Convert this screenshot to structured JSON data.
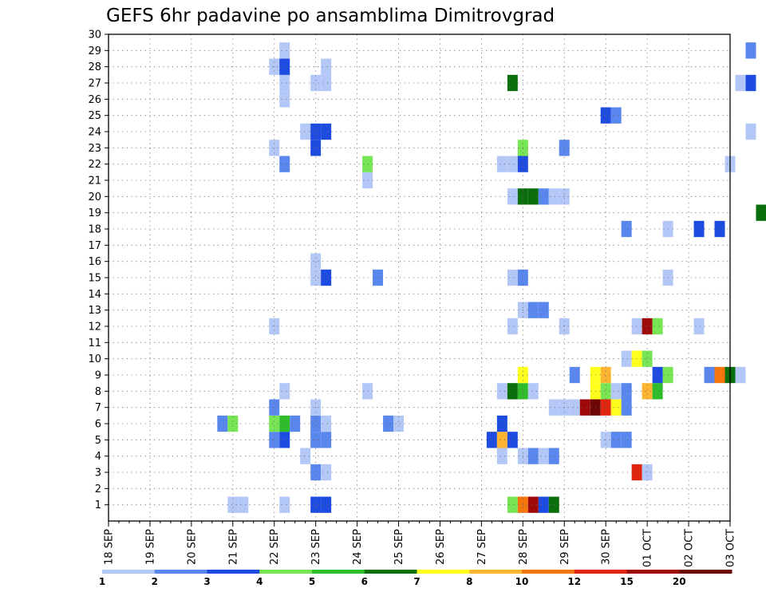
{
  "chart_data": {
    "type": "heatmap",
    "title": "GEFS 6hr padavine po ansamblima Dimitrovgrad",
    "xlabel": "",
    "ylabel": "",
    "x_tick_labels": [
      "18 SEP",
      "19 SEP",
      "20 SEP",
      "21 SEP",
      "22 SEP",
      "23 SEP",
      "24 SEP",
      "25 SEP",
      "26 SEP",
      "27 SEP",
      "28 SEP",
      "29 SEP",
      "30 SEP",
      "01 OCT",
      "02 OCT",
      "03 OCT"
    ],
    "y_range": [
      0,
      30
    ],
    "y_ticks": [
      1,
      2,
      3,
      4,
      5,
      6,
      7,
      8,
      9,
      10,
      11,
      12,
      13,
      14,
      15,
      16,
      17,
      18,
      19,
      20,
      21,
      22,
      23,
      24,
      25,
      26,
      27,
      28,
      29,
      30
    ],
    "grid": true,
    "colorbar": {
      "levels": [
        "1",
        "2",
        "3",
        "4",
        "5",
        "6",
        "7",
        "8",
        "10",
        "12",
        "15",
        "20"
      ],
      "colors": [
        "#b4c8f8",
        "#5a87ee",
        "#1e4ce0",
        "#78e654",
        "#2fbd2c",
        "#0a6e0c",
        "#ffff1e",
        "#fdb531",
        "#f6760d",
        "#e0260e",
        "#9e0a0a",
        "#6e0606"
      ]
    },
    "cells": [
      {
        "t": "21 SEP 00Z",
        "m": 1,
        "c": 0
      },
      {
        "t": "21 SEP 06Z",
        "m": 1,
        "c": 0
      },
      {
        "t": "22 SEP 06Z",
        "m": 1,
        "c": 0
      },
      {
        "t": "23 SEP 00Z",
        "m": 1,
        "c": 2
      },
      {
        "t": "23 SEP 06Z",
        "m": 1,
        "c": 2
      },
      {
        "t": "27 SEP 18Z",
        "m": 1,
        "c": 3
      },
      {
        "t": "28 SEP 00Z",
        "m": 1,
        "c": 8
      },
      {
        "t": "28 SEP 06Z",
        "m": 1,
        "c": 10
      },
      {
        "t": "28 SEP 12Z",
        "m": 1,
        "c": 2
      },
      {
        "t": "28 SEP 18Z",
        "m": 1,
        "c": 5
      },
      {
        "t": "23 SEP 00Z",
        "m": 3,
        "c": 1
      },
      {
        "t": "23 SEP 06Z",
        "m": 3,
        "c": 0
      },
      {
        "t": "30 SEP 18Z",
        "m": 3,
        "c": 9
      },
      {
        "t": "01 OCT 00Z",
        "m": 3,
        "c": 0
      },
      {
        "t": "22 SEP 18Z",
        "m": 4,
        "c": 0
      },
      {
        "t": "27 SEP 12Z",
        "m": 4,
        "c": 0
      },
      {
        "t": "28 SEP 00Z",
        "m": 4,
        "c": 0
      },
      {
        "t": "28 SEP 06Z",
        "m": 4,
        "c": 1
      },
      {
        "t": "28 SEP 12Z",
        "m": 4,
        "c": 0
      },
      {
        "t": "28 SEP 18Z",
        "m": 4,
        "c": 1
      },
      {
        "t": "22 SEP 00Z",
        "m": 5,
        "c": 1
      },
      {
        "t": "22 SEP 06Z",
        "m": 5,
        "c": 2
      },
      {
        "t": "23 SEP 00Z",
        "m": 5,
        "c": 1
      },
      {
        "t": "23 SEP 06Z",
        "m": 5,
        "c": 1
      },
      {
        "t": "27 SEP 06Z",
        "m": 5,
        "c": 2
      },
      {
        "t": "27 SEP 12Z",
        "m": 5,
        "c": 7
      },
      {
        "t": "27 SEP 18Z",
        "m": 5,
        "c": 2
      },
      {
        "t": "30 SEP 00Z",
        "m": 5,
        "c": 0
      },
      {
        "t": "30 SEP 06Z",
        "m": 5,
        "c": 1
      },
      {
        "t": "30 SEP 12Z",
        "m": 5,
        "c": 1
      },
      {
        "t": "20 SEP 18Z",
        "m": 6,
        "c": 1
      },
      {
        "t": "21 SEP 00Z",
        "m": 6,
        "c": 3
      },
      {
        "t": "22 SEP 00Z",
        "m": 6,
        "c": 3
      },
      {
        "t": "22 SEP 06Z",
        "m": 6,
        "c": 4
      },
      {
        "t": "22 SEP 12Z",
        "m": 6,
        "c": 1
      },
      {
        "t": "23 SEP 00Z",
        "m": 6,
        "c": 1
      },
      {
        "t": "23 SEP 06Z",
        "m": 6,
        "c": 0
      },
      {
        "t": "24 SEP 18Z",
        "m": 6,
        "c": 1
      },
      {
        "t": "25 SEP 00Z",
        "m": 6,
        "c": 0
      },
      {
        "t": "27 SEP 12Z",
        "m": 6,
        "c": 2
      },
      {
        "t": "22 SEP 00Z",
        "m": 7,
        "c": 1
      },
      {
        "t": "23 SEP 00Z",
        "m": 7,
        "c": 0
      },
      {
        "t": "28 SEP 18Z",
        "m": 7,
        "c": 0
      },
      {
        "t": "29 SEP 00Z",
        "m": 7,
        "c": 0
      },
      {
        "t": "29 SEP 06Z",
        "m": 7,
        "c": 0
      },
      {
        "t": "29 SEP 12Z",
        "m": 7,
        "c": 10
      },
      {
        "t": "29 SEP 18Z",
        "m": 7,
        "c": 11
      },
      {
        "t": "30 SEP 00Z",
        "m": 7,
        "c": 9
      },
      {
        "t": "30 SEP 06Z",
        "m": 7,
        "c": 6
      },
      {
        "t": "30 SEP 12Z",
        "m": 7,
        "c": 1
      },
      {
        "t": "22 SEP 06Z",
        "m": 8,
        "c": 0
      },
      {
        "t": "24 SEP 06Z",
        "m": 8,
        "c": 0
      },
      {
        "t": "27 SEP 12Z",
        "m": 8,
        "c": 0
      },
      {
        "t": "27 SEP 18Z",
        "m": 8,
        "c": 5
      },
      {
        "t": "28 SEP 00Z",
        "m": 8,
        "c": 4
      },
      {
        "t": "28 SEP 06Z",
        "m": 8,
        "c": 0
      },
      {
        "t": "29 SEP 18Z",
        "m": 8,
        "c": 6
      },
      {
        "t": "30 SEP 00Z",
        "m": 8,
        "c": 3
      },
      {
        "t": "30 SEP 06Z",
        "m": 8,
        "c": 0
      },
      {
        "t": "30 SEP 12Z",
        "m": 8,
        "c": 1
      },
      {
        "t": "01 OCT 00Z",
        "m": 8,
        "c": 7
      },
      {
        "t": "01 OCT 06Z",
        "m": 8,
        "c": 4
      },
      {
        "t": "28 SEP 00Z",
        "m": 9,
        "c": 6
      },
      {
        "t": "29 SEP 06Z",
        "m": 9,
        "c": 1
      },
      {
        "t": "29 SEP 18Z",
        "m": 9,
        "c": 6
      },
      {
        "t": "30 SEP 00Z",
        "m": 9,
        "c": 7
      },
      {
        "t": "01 OCT 06Z",
        "m": 9,
        "c": 2
      },
      {
        "t": "01 OCT 12Z",
        "m": 9,
        "c": 3
      },
      {
        "t": "02 OCT 12Z",
        "m": 9,
        "c": 1
      },
      {
        "t": "02 OCT 18Z",
        "m": 9,
        "c": 8
      },
      {
        "t": "03 OCT 00Z",
        "m": 9,
        "c": 5
      },
      {
        "t": "03 OCT 06Z",
        "m": 9,
        "c": 0
      },
      {
        "t": "30 SEP 12Z",
        "m": 10,
        "c": 0
      },
      {
        "t": "30 SEP 18Z",
        "m": 10,
        "c": 6
      },
      {
        "t": "01 OCT 00Z",
        "m": 10,
        "c": 3
      },
      {
        "t": "22 SEP 00Z",
        "m": 12,
        "c": 0
      },
      {
        "t": "27 SEP 18Z",
        "m": 12,
        "c": 0
      },
      {
        "t": "29 SEP 00Z",
        "m": 12,
        "c": 0
      },
      {
        "t": "30 SEP 18Z",
        "m": 12,
        "c": 0
      },
      {
        "t": "01 OCT 00Z",
        "m": 12,
        "c": 10
      },
      {
        "t": "01 OCT 06Z",
        "m": 12,
        "c": 3
      },
      {
        "t": "02 OCT 06Z",
        "m": 12,
        "c": 0
      },
      {
        "t": "28 SEP 00Z",
        "m": 13,
        "c": 0
      },
      {
        "t": "28 SEP 06Z",
        "m": 13,
        "c": 1
      },
      {
        "t": "28 SEP 12Z",
        "m": 13,
        "c": 1
      },
      {
        "t": "23 SEP 00Z",
        "m": 15,
        "c": 0
      },
      {
        "t": "23 SEP 06Z",
        "m": 15,
        "c": 2
      },
      {
        "t": "24 SEP 12Z",
        "m": 15,
        "c": 1
      },
      {
        "t": "27 SEP 18Z",
        "m": 15,
        "c": 0
      },
      {
        "t": "28 SEP 00Z",
        "m": 15,
        "c": 1
      },
      {
        "t": "01 OCT 12Z",
        "m": 15,
        "c": 0
      },
      {
        "t": "23 SEP 00Z",
        "m": 16,
        "c": 0
      },
      {
        "t": "30 SEP 12Z",
        "m": 18,
        "c": 1
      },
      {
        "t": "01 OCT 12Z",
        "m": 18,
        "c": 0
      },
      {
        "t": "02 OCT 06Z",
        "m": 18,
        "c": 2
      },
      {
        "t": "02 OCT 18Z",
        "m": 18,
        "c": 2
      },
      {
        "t": "03 OCT 18Z",
        "m": 19,
        "c": 5
      },
      {
        "t": "27 SEP 18Z",
        "m": 20,
        "c": 0
      },
      {
        "t": "28 SEP 00Z",
        "m": 20,
        "c": 5
      },
      {
        "t": "28 SEP 06Z",
        "m": 20,
        "c": 5
      },
      {
        "t": "28 SEP 12Z",
        "m": 20,
        "c": 1
      },
      {
        "t": "28 SEP 18Z",
        "m": 20,
        "c": 0
      },
      {
        "t": "29 SEP 00Z",
        "m": 20,
        "c": 0
      },
      {
        "t": "24 SEP 06Z",
        "m": 21,
        "c": 0
      },
      {
        "t": "22 SEP 06Z",
        "m": 22,
        "c": 1
      },
      {
        "t": "24 SEP 06Z",
        "m": 22,
        "c": 3
      },
      {
        "t": "27 SEP 12Z",
        "m": 22,
        "c": 0
      },
      {
        "t": "27 SEP 18Z",
        "m": 22,
        "c": 0
      },
      {
        "t": "28 SEP 00Z",
        "m": 22,
        "c": 2
      },
      {
        "t": "03 OCT 00Z",
        "m": 22,
        "c": 0
      },
      {
        "t": "22 SEP 00Z",
        "m": 23,
        "c": 0
      },
      {
        "t": "23 SEP 00Z",
        "m": 23,
        "c": 2
      },
      {
        "t": "28 SEP 00Z",
        "m": 23,
        "c": 3
      },
      {
        "t": "29 SEP 00Z",
        "m": 23,
        "c": 1
      },
      {
        "t": "22 SEP 18Z",
        "m": 24,
        "c": 0
      },
      {
        "t": "23 SEP 00Z",
        "m": 24,
        "c": 2
      },
      {
        "t": "23 SEP 06Z",
        "m": 24,
        "c": 2
      },
      {
        "t": "03 OCT 12Z",
        "m": 24,
        "c": 0
      },
      {
        "t": "30 SEP 00Z",
        "m": 25,
        "c": 2
      },
      {
        "t": "30 SEP 06Z",
        "m": 25,
        "c": 1
      },
      {
        "t": "22 SEP 06Z",
        "m": 26,
        "c": 0
      },
      {
        "t": "22 SEP 06Z",
        "m": 27,
        "c": 0
      },
      {
        "t": "23 SEP 00Z",
        "m": 27,
        "c": 0
      },
      {
        "t": "23 SEP 06Z",
        "m": 27,
        "c": 0
      },
      {
        "t": "27 SEP 18Z",
        "m": 27,
        "c": 5
      },
      {
        "t": "03 OCT 06Z",
        "m": 27,
        "c": 0
      },
      {
        "t": "03 OCT 12Z",
        "m": 27,
        "c": 2
      },
      {
        "t": "22 SEP 00Z",
        "m": 28,
        "c": 0
      },
      {
        "t": "22 SEP 06Z",
        "m": 28,
        "c": 2
      },
      {
        "t": "23 SEP 06Z",
        "m": 28,
        "c": 0
      },
      {
        "t": "22 SEP 06Z",
        "m": 29,
        "c": 0
      },
      {
        "t": "03 OCT 12Z",
        "m": 29,
        "c": 1
      }
    ]
  }
}
